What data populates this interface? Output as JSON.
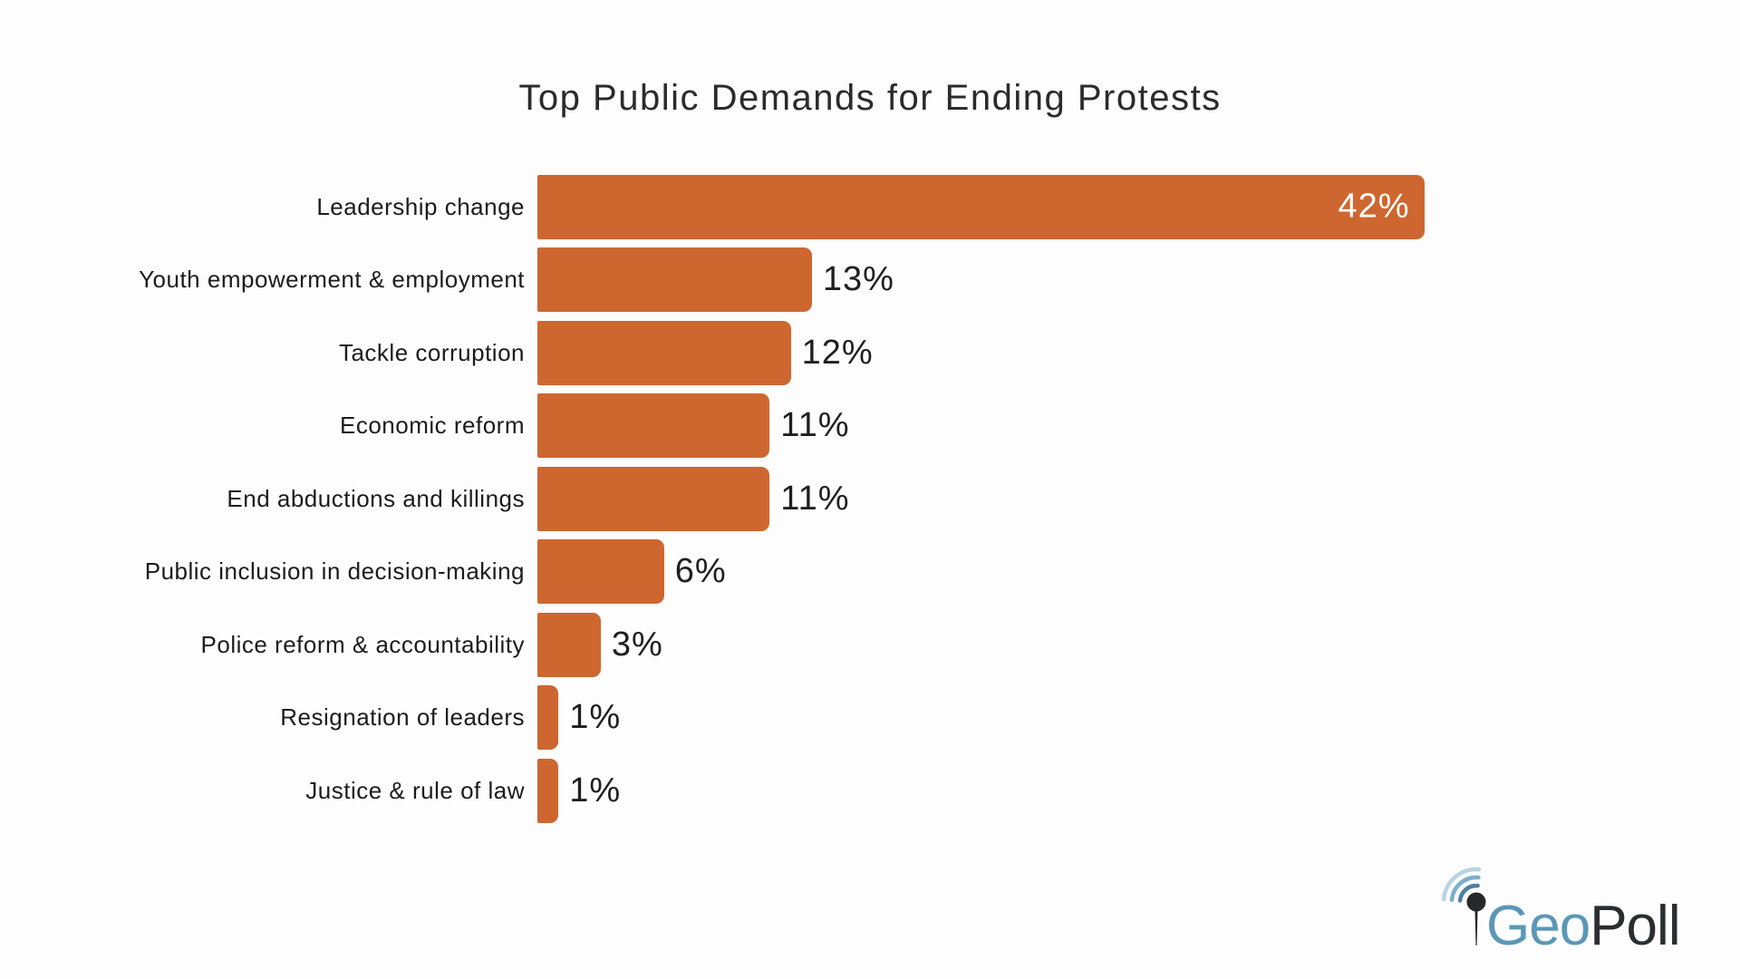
{
  "chart_data": {
    "type": "bar",
    "orientation": "horizontal",
    "title": "Top Public Demands for Ending Protests",
    "categories": [
      "Leadership change",
      "Youth empowerment & employment",
      "Tackle corruption",
      "Economic reform",
      "End abductions and killings",
      "Public inclusion in decision-making",
      "Police reform & accountability",
      "Resignation of leaders",
      "Justice & rule of law"
    ],
    "values": [
      42,
      13,
      12,
      11,
      11,
      6,
      3,
      1,
      1
    ],
    "value_labels": [
      "42%",
      "13%",
      "12%",
      "11%",
      "11%",
      "6%",
      "3%",
      "1%",
      "1%"
    ],
    "xlabel": "",
    "ylabel": "",
    "xlim": [
      0,
      45
    ],
    "grid": false,
    "legend": false,
    "bar_color": "#cd672f",
    "value_label_inside_for_max": true
  },
  "colors": {
    "background": "#fdfdfd",
    "bar": "#cd672f",
    "title_text": "#2b2b2b",
    "category_text": "#1c1c1c",
    "value_text": "#1f1f1f",
    "value_text_inside": "#ffffff",
    "logo_blue": "#5b97b7",
    "logo_dark": "#2b2e30",
    "logo_pin": "#26282a",
    "logo_arc_inner": "#4e7f9f",
    "logo_arc_middle": "#7fafca",
    "logo_arc_outer": "#b8d4e2"
  },
  "logo": {
    "text_blue": "Geo",
    "text_dark": "Poll",
    "icon": "map-pin-with-signal-arcs"
  }
}
